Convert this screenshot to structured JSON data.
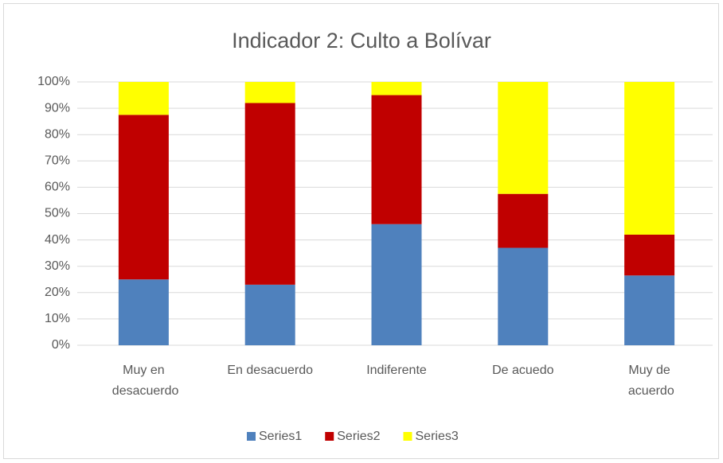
{
  "chart_data": {
    "type": "stacked_bar",
    "title": "Indicador 2: Culto a Bolívar",
    "categories": [
      "Muy en desacuerdo",
      "En desacuerdo",
      "Indiferente",
      "De acuedo",
      "Muy de acuerdo"
    ],
    "series": [
      {
        "name": "Series1",
        "color": "#4f81bd",
        "values": [
          25,
          23,
          46,
          37,
          26.5
        ]
      },
      {
        "name": "Series2",
        "color": "#c00000",
        "values": [
          62.5,
          69,
          49,
          20.5,
          15.5
        ]
      },
      {
        "name": "Series3",
        "color": "#ffff00",
        "values": [
          12.5,
          8,
          5,
          42.5,
          58
        ]
      }
    ],
    "ylim": [
      0,
      100
    ],
    "yticks": [
      {
        "value": 0,
        "label": "0%"
      },
      {
        "value": 10,
        "label": "10%"
      },
      {
        "value": 20,
        "label": "20%"
      },
      {
        "value": 30,
        "label": "30%"
      },
      {
        "value": 40,
        "label": "40%"
      },
      {
        "value": 50,
        "label": "50%"
      },
      {
        "value": 60,
        "label": "60%"
      },
      {
        "value": 70,
        "label": "70%"
      },
      {
        "value": 80,
        "label": "80%"
      },
      {
        "value": 90,
        "label": "90%"
      },
      {
        "value": 100,
        "label": "100%"
      }
    ],
    "grid": true,
    "legend": "bottom"
  }
}
